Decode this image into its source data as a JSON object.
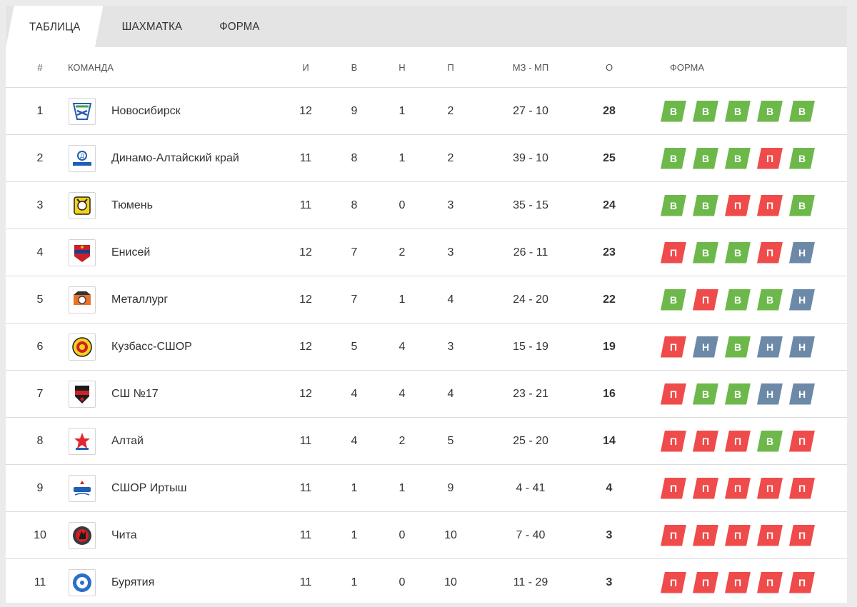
{
  "tabs": [
    "ТАБЛИЦА",
    "ШАХМАТКА",
    "ФОРМА"
  ],
  "active_tab": 0,
  "headers": {
    "num": "#",
    "team": "КОМАНДА",
    "games": "И",
    "wins": "В",
    "draws": "Н",
    "losses": "П",
    "goals": "МЗ - МП",
    "points": "О",
    "form": "ФОРМА"
  },
  "colors": {
    "win": "#6db84a",
    "loss": "#ef4b4b",
    "draw": "#6c89a8"
  },
  "rows": [
    {
      "pos": "1",
      "team": "Новосибирск",
      "logo": "novosibirsk-logo",
      "games": "12",
      "wins": "9",
      "draws": "1",
      "losses": "2",
      "goals": "27 - 10",
      "points": "28",
      "form": [
        "В",
        "В",
        "В",
        "В",
        "В"
      ]
    },
    {
      "pos": "2",
      "team": "Динамо-Алтайский край",
      "logo": "dinamo-altai-logo",
      "games": "11",
      "wins": "8",
      "draws": "1",
      "losses": "2",
      "goals": "39 - 10",
      "points": "25",
      "form": [
        "В",
        "В",
        "В",
        "П",
        "В"
      ]
    },
    {
      "pos": "3",
      "team": "Тюмень",
      "logo": "tyumen-logo",
      "games": "11",
      "wins": "8",
      "draws": "0",
      "losses": "3",
      "goals": "35 - 15",
      "points": "24",
      "form": [
        "В",
        "В",
        "П",
        "П",
        "В"
      ]
    },
    {
      "pos": "4",
      "team": "Енисей",
      "logo": "enisey-logo",
      "games": "12",
      "wins": "7",
      "draws": "2",
      "losses": "3",
      "goals": "26 - 11",
      "points": "23",
      "form": [
        "П",
        "В",
        "В",
        "П",
        "Н"
      ]
    },
    {
      "pos": "5",
      "team": "Металлург",
      "logo": "metallurg-logo",
      "games": "12",
      "wins": "7",
      "draws": "1",
      "losses": "4",
      "goals": "24 - 20",
      "points": "22",
      "form": [
        "В",
        "П",
        "В",
        "В",
        "Н"
      ]
    },
    {
      "pos": "6",
      "team": "Кузбасс-СШОР",
      "logo": "kuzbass-logo",
      "games": "12",
      "wins": "5",
      "draws": "4",
      "losses": "3",
      "goals": "15 - 19",
      "points": "19",
      "form": [
        "П",
        "Н",
        "В",
        "Н",
        "Н"
      ]
    },
    {
      "pos": "7",
      "team": "СШ №17",
      "logo": "sh17-logo",
      "games": "12",
      "wins": "4",
      "draws": "4",
      "losses": "4",
      "goals": "23 - 21",
      "points": "16",
      "form": [
        "П",
        "В",
        "В",
        "Н",
        "Н"
      ]
    },
    {
      "pos": "8",
      "team": "Алтай",
      "logo": "altai-logo",
      "games": "11",
      "wins": "4",
      "draws": "2",
      "losses": "5",
      "goals": "25 - 20",
      "points": "14",
      "form": [
        "П",
        "П",
        "П",
        "В",
        "П"
      ]
    },
    {
      "pos": "9",
      "team": "СШОР Иртыш",
      "logo": "irtysh-logo",
      "games": "11",
      "wins": "1",
      "draws": "1",
      "losses": "9",
      "goals": "4 - 41",
      "points": "4",
      "form": [
        "П",
        "П",
        "П",
        "П",
        "П"
      ]
    },
    {
      "pos": "10",
      "team": "Чита",
      "logo": "chita-logo",
      "games": "11",
      "wins": "1",
      "draws": "0",
      "losses": "10",
      "goals": "7 - 40",
      "points": "3",
      "form": [
        "П",
        "П",
        "П",
        "П",
        "П"
      ]
    },
    {
      "pos": "11",
      "team": "Бурятия",
      "logo": "buryatia-logo",
      "games": "11",
      "wins": "1",
      "draws": "0",
      "losses": "10",
      "goals": "11 - 29",
      "points": "3",
      "form": [
        "П",
        "П",
        "П",
        "П",
        "П"
      ]
    }
  ]
}
